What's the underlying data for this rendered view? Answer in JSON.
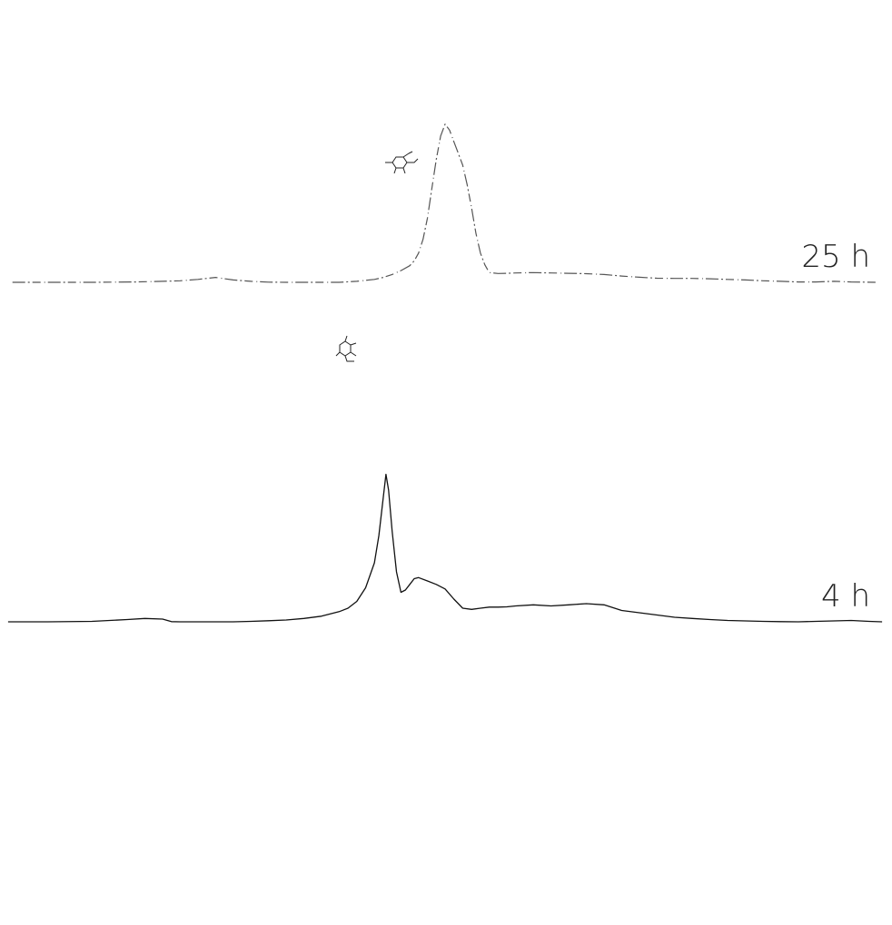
{
  "chart_data": {
    "type": "line",
    "xlim": [
      0,
      100
    ],
    "ylim": [
      0,
      100
    ],
    "grid": false,
    "series": [
      {
        "name": "25 h",
        "style": "dotted-gray",
        "x": [
          1,
          5,
          10,
          15,
          18,
          20,
          22,
          24,
          26,
          28,
          30,
          32,
          34,
          36,
          38,
          40,
          42,
          43,
          44,
          45,
          46,
          46.5,
          47,
          47.5,
          48,
          48.5,
          49,
          49.5,
          50,
          50.5,
          51,
          51.5,
          52,
          52.5,
          53,
          53.5,
          54,
          54.5,
          55,
          56,
          57,
          58,
          60,
          62,
          64,
          66,
          68,
          70,
          72,
          74,
          76,
          78,
          80,
          82,
          84,
          86,
          88,
          90,
          92,
          94,
          96,
          99
        ],
        "y": [
          0,
          0,
          0,
          0.2,
          0.5,
          0.8,
          1.5,
          2.5,
          1.2,
          0.5,
          0.1,
          0,
          0,
          0,
          0,
          0.5,
          1.5,
          2.5,
          4,
          6,
          8.5,
          11,
          15,
          22,
          33,
          48,
          63,
          75,
          81,
          78,
          72,
          66,
          60,
          50,
          38,
          25,
          15,
          9,
          5,
          4.5,
          4.6,
          4.8,
          5,
          4.8,
          4.6,
          4.4,
          4,
          3.2,
          2.6,
          2.1,
          2,
          2,
          1.8,
          1.5,
          1.2,
          0.8,
          0.5,
          0.2,
          0.2,
          0.5,
          0.2,
          0
        ]
      },
      {
        "name": "4 h",
        "style": "solid-black",
        "x": [
          0.5,
          5,
          10,
          14,
          16,
          18,
          19,
          20,
          22,
          24,
          26,
          28,
          30,
          32,
          34,
          36,
          38,
          39,
          40,
          41,
          42,
          42.5,
          43,
          43.3,
          43.6,
          44,
          44.5,
          45,
          45.5,
          46,
          46.5,
          47,
          48,
          49,
          50,
          51,
          52,
          53,
          54,
          55,
          56,
          57,
          58,
          60,
          62,
          64,
          66,
          68,
          70,
          72,
          74,
          76,
          78,
          80,
          82,
          84,
          86,
          88,
          90,
          92,
          94,
          96,
          98,
          99.5
        ],
        "y": [
          0,
          0,
          0.2,
          1,
          1.5,
          1.2,
          0.1,
          0,
          0,
          0,
          0,
          0.2,
          0.5,
          0.8,
          1.5,
          2.5,
          4.5,
          6,
          9,
          15,
          26,
          38,
          55,
          65,
          58,
          40,
          22,
          13,
          14,
          16.5,
          19,
          19.5,
          18,
          16.5,
          14.5,
          10,
          6,
          5.5,
          6,
          6.5,
          6.5,
          6.6,
          7,
          7.5,
          7,
          7.5,
          8,
          7.5,
          5,
          4,
          3,
          2,
          1.5,
          1,
          0.6,
          0.4,
          0.2,
          0.1,
          0,
          0.2,
          0.4,
          0.6,
          0.2,
          0
        ]
      }
    ],
    "annotations": [
      {
        "text": "25 h",
        "series": "25 h"
      },
      {
        "text": "4 h",
        "series": "4 h"
      }
    ]
  }
}
